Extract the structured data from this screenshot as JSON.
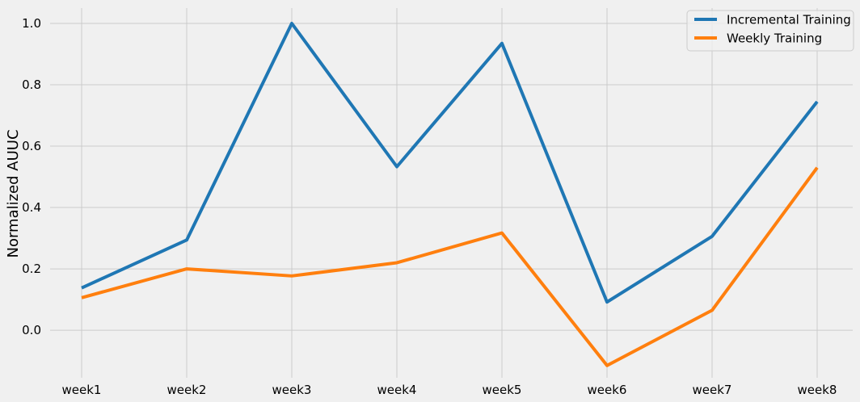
{
  "chart_data": {
    "type": "line",
    "categories": [
      "week1",
      "week2",
      "week3",
      "week4",
      "week5",
      "week6",
      "week7",
      "week8"
    ],
    "series": [
      {
        "name": "Incremental Training",
        "color": "#1f77b4",
        "values": [
          0.138,
          0.294,
          1.0,
          0.533,
          0.935,
          0.092,
          0.306,
          0.745
        ]
      },
      {
        "name": "Weekly Training",
        "color": "#ff7f0e",
        "values": [
          0.106,
          0.2,
          0.177,
          0.22,
          0.317,
          -0.115,
          0.065,
          0.53
        ]
      }
    ],
    "xlabel": "",
    "ylabel": "Normalized AUUC",
    "ylim": [
      -0.155,
      1.05
    ],
    "yticks": [
      0.0,
      0.2,
      0.4,
      0.6,
      0.8,
      1.0
    ],
    "ytick_labels": [
      "0.0",
      "0.2",
      "0.4",
      "0.6",
      "0.8",
      "1.0"
    ],
    "grid": true,
    "legend_position": "top-right",
    "background_color": "#f0f0f0",
    "grid_color": "#cbcbcb"
  }
}
